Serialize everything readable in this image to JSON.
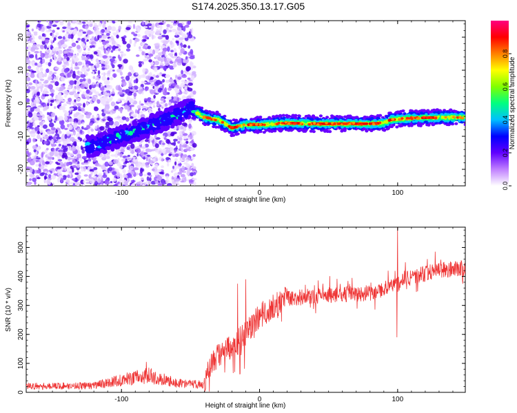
{
  "title": "S174.2025.350.13.17.G05",
  "chart_data": [
    {
      "type": "heatmap",
      "xlabel": "Height of straight line (km)",
      "ylabel": "Frequency (Hz)",
      "xlim": [
        -169,
        149
      ],
      "ylim": [
        -25,
        25
      ],
      "xticks": [
        -100,
        0,
        100
      ],
      "yticks": [
        -20,
        -10,
        0,
        10,
        20
      ],
      "colorbar": {
        "label": "Normalized spectral amplitude",
        "range": [
          0,
          1
        ],
        "ticks": [
          "0.0",
          "0.2",
          "0.4",
          "0.6",
          "0.8"
        ],
        "colors": [
          "#ffffff",
          "#c080ff",
          "#6000ff",
          "#0000ff",
          "#00c0ff",
          "#00ff80",
          "#80ff00",
          "#ffff00",
          "#ff8000",
          "#ff0000",
          "#ff0080"
        ]
      },
      "ridge": {
        "x": [
          -120,
          -100,
          -80,
          -60,
          -50,
          -40,
          -30,
          -20,
          -10,
          0,
          20,
          40,
          60,
          80,
          90,
          95,
          110,
          130,
          149
        ],
        "freq": [
          -13,
          -10,
          -7,
          -3.5,
          -1.5,
          -4.3,
          -5,
          -7.5,
          -6.5,
          -6.5,
          -6,
          -6.2,
          -6.2,
          -6.2,
          -6,
          -5,
          -4.5,
          -4.3,
          -4.3
        ]
      }
    },
    {
      "type": "line",
      "xlabel": "Height of straight line (km)",
      "ylabel": "SNR (10 * v/v)",
      "xlim": [
        -169,
        149
      ],
      "ylim": [
        0,
        570
      ],
      "xticks": [
        -100,
        0,
        100
      ],
      "yticks": [
        0,
        100,
        200,
        300,
        400,
        500
      ],
      "color": "#ee3333",
      "trend": {
        "x": [
          -169,
          -120,
          -95,
          -80,
          -60,
          -40,
          -35,
          -30,
          -20,
          -10,
          0,
          10,
          20,
          40,
          60,
          80,
          95,
          100,
          110,
          130,
          149
        ],
        "y": [
          20,
          22,
          45,
          55,
          30,
          25,
          100,
          120,
          150,
          200,
          260,
          290,
          320,
          330,
          335,
          340,
          360,
          370,
          395,
          420,
          425
        ]
      },
      "spikes": [
        {
          "x": -82,
          "y": 105
        },
        {
          "x": -16,
          "y": 375
        },
        {
          "x": -10,
          "y": 390
        },
        {
          "x": 100,
          "y": 570
        },
        {
          "x": 99.5,
          "y": 190
        }
      ]
    }
  ]
}
